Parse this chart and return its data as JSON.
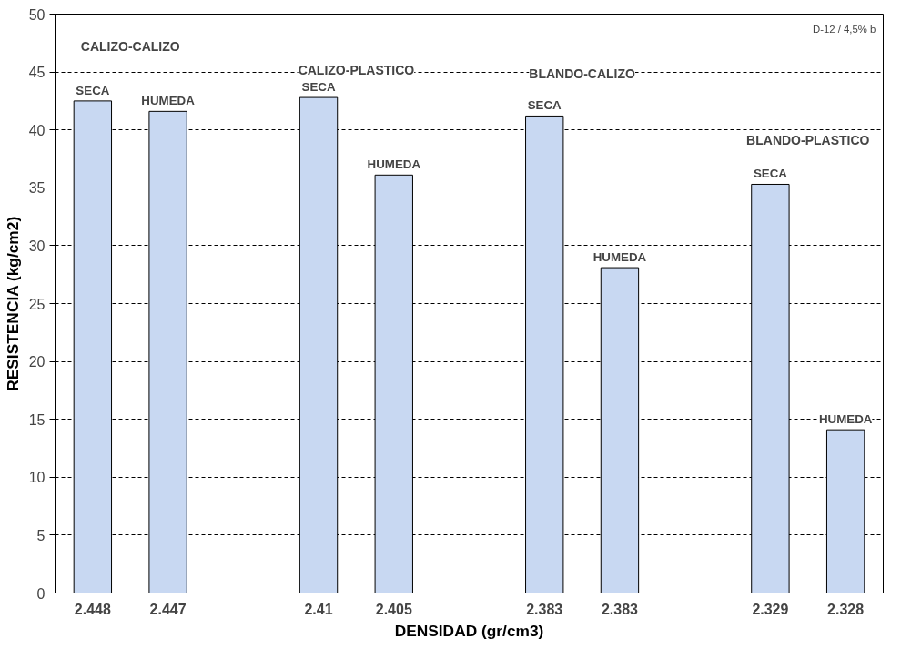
{
  "chart_data": {
    "type": "bar",
    "xlabel": "DENSIDAD (gr/cm3)",
    "ylabel": "RESISTENCIA (kg/cm2)",
    "categories": [
      "2.448",
      "2.447",
      null,
      "2.41",
      "2.405",
      null,
      "2.383",
      "2.383",
      null,
      "2.329",
      "2.328"
    ],
    "values": [
      42.5,
      41.6,
      null,
      42.8,
      36.1,
      null,
      41.2,
      28.1,
      null,
      35.3,
      14.1
    ],
    "color": "#c8d8f2",
    "ylim": [
      0,
      50
    ],
    "yticks": [
      0,
      5,
      10,
      15,
      20,
      25,
      30,
      35,
      40,
      45,
      50
    ],
    "grid": "y",
    "annotations": [
      "SECA",
      "HUMEDA",
      "SECA",
      "HUMEDA",
      "SECA",
      "HUMEDA",
      "SECA",
      "HUMEDA",
      "CALIZO-CALIZO",
      "CALIZO-PLASTICO",
      "BLANDO-CALIZO",
      "BLANDO-PLASTICO",
      "D-12 / 4,5% b"
    ]
  }
}
